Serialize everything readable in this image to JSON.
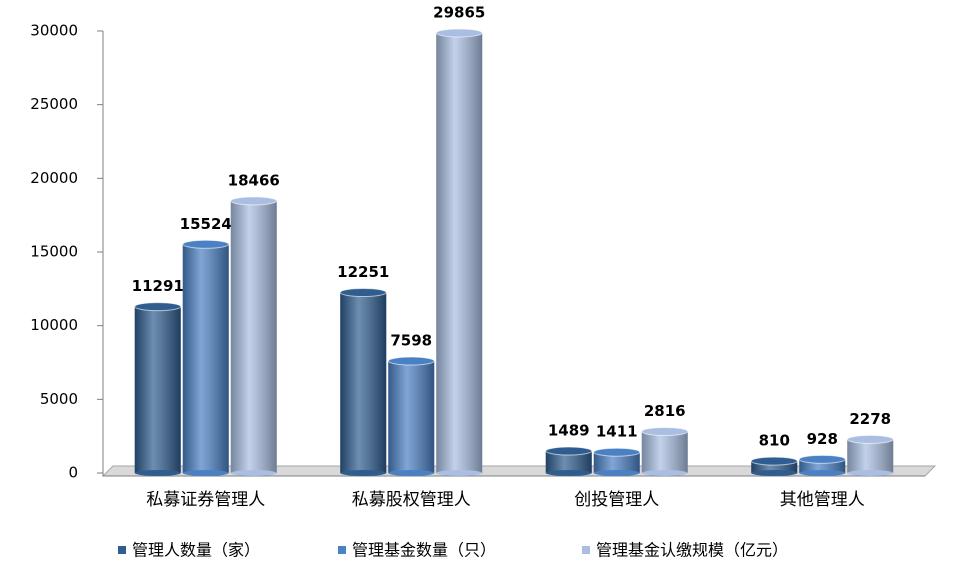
{
  "chart_data": {
    "type": "bar3d",
    "categories": [
      "私募证券管理人",
      "私募股权管理人",
      "创投管理人",
      "其他管理人"
    ],
    "series": [
      {
        "name": "管理人数量（家）",
        "color": "#2f5d8f",
        "values": [
          11291,
          12251,
          1489,
          810
        ]
      },
      {
        "name": "管理基金数量（只）",
        "color": "#4a80c4",
        "values": [
          15524,
          7598,
          1411,
          928
        ]
      },
      {
        "name": "管理基金认缴规模（亿元）",
        "color": "#a9bee2",
        "values": [
          18466,
          29865,
          2816,
          2278
        ]
      }
    ],
    "ylim": [
      0,
      30000
    ],
    "yticks": [
      0,
      5000,
      10000,
      15000,
      20000,
      25000,
      30000
    ],
    "grid": false,
    "legend": "bottom"
  }
}
